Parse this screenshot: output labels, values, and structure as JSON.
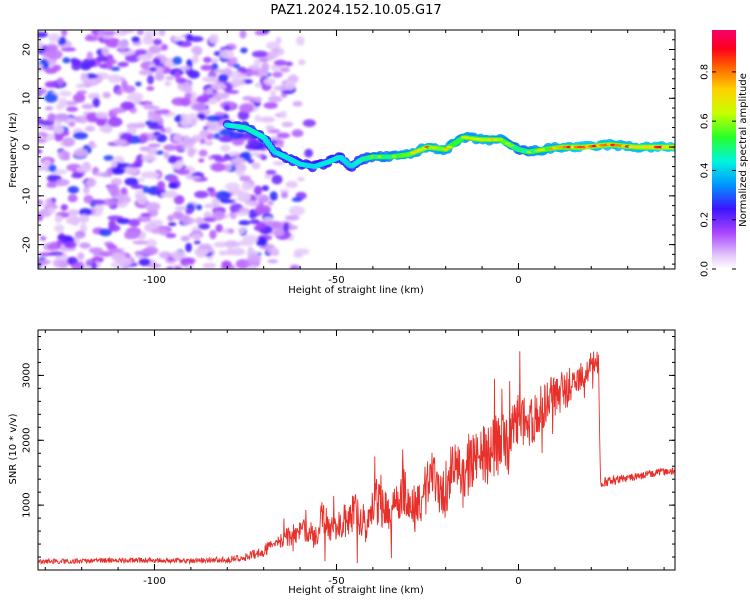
{
  "figure_title": "PAZ1.2024.152.10.05.G17",
  "colors": {
    "snr_line": "#e8302a",
    "axis": "#000000"
  },
  "colorbar": {
    "label": "Normalized spectral amplitude",
    "range": [
      0,
      0.97
    ],
    "ticks": [
      "0.0",
      "0.2",
      "0.4",
      "0.6",
      "0.8"
    ],
    "tick_values": [
      0,
      0.2,
      0.4,
      0.6,
      0.8
    ],
    "colormap": "gist_rainbow (reversed, fading to white at low values)"
  },
  "chart_data": [
    {
      "type": "heatmap",
      "title": "",
      "xlabel": "Height of straight line (km)",
      "ylabel": "Frequency (Hz)",
      "xlim": [
        -132,
        43
      ],
      "ylim": [
        -25,
        24
      ],
      "xticks": [
        "-100",
        "-50",
        "0"
      ],
      "xtick_values": [
        -100,
        -50,
        0
      ],
      "yticks": [
        "20",
        "10",
        "0",
        "-10",
        "-20"
      ],
      "ytick_values": [
        20,
        10,
        0,
        -10,
        -20
      ],
      "noise_region_x": [
        -132,
        -62
      ],
      "noise_amplitude_range": [
        0.05,
        0.3
      ],
      "ridge": {
        "description": "narrow high-amplitude frequency track",
        "x": [
          -80,
          -75,
          -70,
          -67,
          -64,
          -60,
          -56,
          -52,
          -49,
          -46,
          -43,
          -40,
          -35,
          -30,
          -25,
          -20,
          -15,
          -10,
          -5,
          0,
          3,
          7,
          12,
          18,
          25,
          32,
          38,
          43
        ],
        "y": [
          4.5,
          4,
          2,
          -1,
          -2,
          -3.5,
          -4,
          -3,
          -2,
          -4,
          -2.5,
          -2,
          -2,
          -1.5,
          0,
          -0.5,
          2,
          1.5,
          1.5,
          -0.5,
          -1,
          -0.5,
          0,
          0,
          0.5,
          0,
          0,
          0
        ],
        "amplitude": [
          0.3,
          0.4,
          0.35,
          0.25,
          0.3,
          0.28,
          0.25,
          0.3,
          0.3,
          0.22,
          0.4,
          0.55,
          0.6,
          0.7,
          0.8,
          0.7,
          0.65,
          0.75,
          0.7,
          0.5,
          0.6,
          0.7,
          0.8,
          0.9,
          0.85,
          0.8,
          0.9,
          0.9
        ]
      }
    },
    {
      "type": "line",
      "title": "",
      "xlabel": "Height of straight line (km)",
      "ylabel": "SNR (10 * v/v)",
      "xlim": [
        -132,
        43
      ],
      "ylim": [
        0,
        3700
      ],
      "xticks": [
        "-100",
        "-50",
        "0"
      ],
      "xtick_values": [
        -100,
        -50,
        0
      ],
      "yticks": [
        "1000",
        "2000",
        "3000"
      ],
      "ytick_values": [
        1000,
        2000,
        3000
      ],
      "series": [
        {
          "x": [
            -132,
            -120,
            -110,
            -100,
            -90,
            -80,
            -75,
            -70,
            -65,
            -62,
            -59,
            -56,
            -54,
            -51,
            -48,
            -45,
            -42,
            -39,
            -35,
            -31,
            -28,
            -24,
            -21,
            -18,
            -15,
            -12,
            -11,
            -9,
            -6,
            -3,
            0,
            3,
            6,
            9,
            12,
            15,
            18,
            20,
            22,
            22.5,
            26,
            30,
            34,
            38,
            43
          ],
          "y": [
            130,
            140,
            150,
            150,
            140,
            160,
            200,
            300,
            450,
            550,
            650,
            500,
            800,
            600,
            750,
            900,
            700,
            1050,
            850,
            1250,
            900,
            1400,
            1100,
            1600,
            1350,
            1700,
            1900,
            1750,
            1950,
            1900,
            2300,
            2200,
            2450,
            2650,
            2700,
            2900,
            3000,
            3150,
            3200,
            1350,
            1380,
            1420,
            1460,
            1500,
            1520
          ],
          "noise_envelope": [
            40,
            40,
            40,
            40,
            40,
            50,
            60,
            90,
            140,
            170,
            200,
            180,
            250,
            220,
            260,
            300,
            280,
            360,
            330,
            400,
            360,
            450,
            420,
            480,
            450,
            500,
            520,
            480,
            500,
            470,
            420,
            400,
            360,
            330,
            300,
            280,
            250,
            220,
            200,
            80,
            70,
            60,
            60,
            60,
            60
          ]
        }
      ]
    }
  ]
}
